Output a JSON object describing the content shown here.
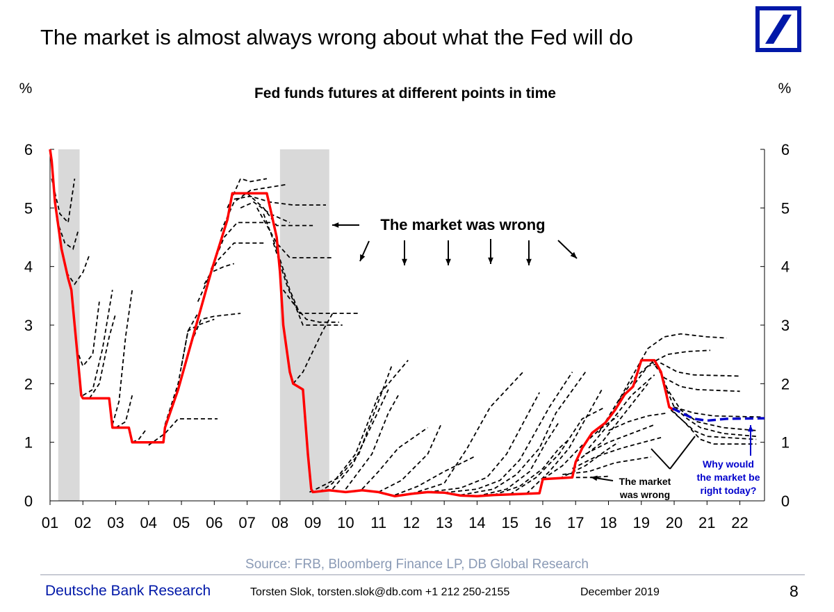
{
  "slide": {
    "title": "The market is almost always wrong about what the Fed will do",
    "footer_brand": "Deutsche Bank Research",
    "footer_contact": "Torsten Slok, torsten.slok@db.com  +1 212 250-2155",
    "footer_date": "December 2019",
    "page_number": "8"
  },
  "chart_data": {
    "type": "line",
    "title": "Fed funds futures at different points in time",
    "ylabel_left": "%",
    "ylabel_right": "%",
    "source": "Source: FRB, Bloomberg Finance LP, DB Global Research",
    "ylim": [
      0,
      6
    ],
    "y_ticks": [
      "0",
      "1",
      "2",
      "3",
      "4",
      "5",
      "6"
    ],
    "x_ticks": [
      "01",
      "02",
      "03",
      "04",
      "05",
      "06",
      "07",
      "08",
      "09",
      "10",
      "11",
      "12",
      "13",
      "14",
      "15",
      "16",
      "17",
      "18",
      "19",
      "20",
      "21",
      "22"
    ],
    "grid": false,
    "colors": {
      "fed_funds": "#ff0000",
      "futures": "#000000",
      "current_futures": "#0000cc",
      "recession": "#d9d9d9"
    },
    "recessions": [
      {
        "start": 2001.25,
        "end": 2001.9
      },
      {
        "start": 2008.0,
        "end": 2009.5
      }
    ],
    "fed_funds_rate": [
      [
        2001.0,
        6.0
      ],
      [
        2001.05,
        5.8
      ],
      [
        2001.15,
        5.1
      ],
      [
        2001.35,
        4.3
      ],
      [
        2001.55,
        3.8
      ],
      [
        2001.65,
        3.6
      ],
      [
        2001.75,
        3.0
      ],
      [
        2001.85,
        2.4
      ],
      [
        2001.95,
        1.8
      ],
      [
        2002.0,
        1.75
      ],
      [
        2002.8,
        1.75
      ],
      [
        2002.9,
        1.25
      ],
      [
        2003.4,
        1.25
      ],
      [
        2003.5,
        1.0
      ],
      [
        2004.45,
        1.0
      ],
      [
        2004.5,
        1.25
      ],
      [
        2004.9,
        1.9
      ],
      [
        2005.4,
        2.9
      ],
      [
        2005.9,
        3.9
      ],
      [
        2006.4,
        4.8
      ],
      [
        2006.55,
        5.25
      ],
      [
        2007.6,
        5.25
      ],
      [
        2007.7,
        5.0
      ],
      [
        2007.9,
        4.5
      ],
      [
        2008.0,
        3.9
      ],
      [
        2008.1,
        3.0
      ],
      [
        2008.3,
        2.2
      ],
      [
        2008.4,
        2.0
      ],
      [
        2008.7,
        1.9
      ],
      [
        2008.85,
        0.8
      ],
      [
        2008.95,
        0.2
      ],
      [
        2009.0,
        0.15
      ],
      [
        2009.5,
        0.18
      ],
      [
        2010.0,
        0.15
      ],
      [
        2010.5,
        0.18
      ],
      [
        2011.0,
        0.15
      ],
      [
        2011.5,
        0.08
      ],
      [
        2012.0,
        0.12
      ],
      [
        2012.5,
        0.15
      ],
      [
        2013.0,
        0.14
      ],
      [
        2013.5,
        0.09
      ],
      [
        2014.0,
        0.08
      ],
      [
        2014.5,
        0.1
      ],
      [
        2015.0,
        0.11
      ],
      [
        2015.9,
        0.13
      ],
      [
        2016.0,
        0.37
      ],
      [
        2016.9,
        0.4
      ],
      [
        2017.0,
        0.66
      ],
      [
        2017.2,
        0.9
      ],
      [
        2017.5,
        1.16
      ],
      [
        2017.9,
        1.33
      ],
      [
        2018.2,
        1.55
      ],
      [
        2018.5,
        1.82
      ],
      [
        2018.75,
        1.95
      ],
      [
        2019.0,
        2.4
      ],
      [
        2019.4,
        2.4
      ],
      [
        2019.6,
        2.2
      ],
      [
        2019.75,
        1.85
      ],
      [
        2019.85,
        1.6
      ],
      [
        2020.0,
        1.55
      ]
    ],
    "futures_paths": [
      [
        [
          2001.05,
          5.5
        ],
        [
          2001.3,
          4.9
        ],
        [
          2001.55,
          4.75
        ],
        [
          2001.75,
          5.5
        ]
      ],
      [
        [
          2001.2,
          4.8
        ],
        [
          2001.45,
          4.4
        ],
        [
          2001.7,
          4.3
        ],
        [
          2001.85,
          4.6
        ]
      ],
      [
        [
          2001.5,
          3.9
        ],
        [
          2001.75,
          3.7
        ],
        [
          2002.0,
          3.9
        ],
        [
          2002.2,
          4.2
        ]
      ],
      [
        [
          2001.8,
          2.6
        ],
        [
          2002.0,
          2.3
        ],
        [
          2002.3,
          2.5
        ],
        [
          2002.5,
          3.4
        ]
      ],
      [
        [
          2002.0,
          1.8
        ],
        [
          2002.3,
          1.9
        ],
        [
          2002.6,
          2.6
        ],
        [
          2002.9,
          3.6
        ]
      ],
      [
        [
          2002.2,
          1.75
        ],
        [
          2002.5,
          2.0
        ],
        [
          2002.8,
          2.8
        ],
        [
          2003.0,
          3.2
        ]
      ],
      [
        [
          2002.9,
          1.3
        ],
        [
          2003.1,
          1.7
        ],
        [
          2003.3,
          2.8
        ],
        [
          2003.5,
          3.6
        ]
      ],
      [
        [
          2003.0,
          1.25
        ],
        [
          2003.3,
          1.35
        ],
        [
          2003.5,
          1.8
        ]
      ],
      [
        [
          2003.5,
          1.0
        ],
        [
          2003.7,
          1.05
        ],
        [
          2003.9,
          1.2
        ]
      ],
      [
        [
          2004.0,
          0.95
        ],
        [
          2004.5,
          1.15
        ],
        [
          2004.9,
          1.4
        ],
        [
          2006.1,
          1.4
        ]
      ],
      [
        [
          2004.5,
          1.3
        ],
        [
          2004.9,
          2.0
        ],
        [
          2005.2,
          2.9
        ],
        [
          2005.5,
          3.2
        ]
      ],
      [
        [
          2005.0,
          2.3
        ],
        [
          2005.2,
          2.9
        ],
        [
          2005.5,
          3.0
        ],
        [
          2006.0,
          3.1
        ]
      ],
      [
        [
          2005.3,
          2.7
        ],
        [
          2005.6,
          3.1
        ],
        [
          2006.0,
          3.15
        ],
        [
          2006.8,
          3.2
        ]
      ],
      [
        [
          2005.5,
          3.4
        ],
        [
          2005.9,
          3.9
        ],
        [
          2006.3,
          4.0
        ],
        [
          2006.6,
          4.05
        ]
      ],
      [
        [
          2005.7,
          3.7
        ],
        [
          2006.1,
          4.1
        ],
        [
          2006.6,
          4.4
        ],
        [
          2007.5,
          4.4
        ]
      ],
      [
        [
          2005.9,
          3.95
        ],
        [
          2006.3,
          4.5
        ],
        [
          2006.7,
          4.75
        ],
        [
          2007.8,
          4.75
        ]
      ],
      [
        [
          2006.2,
          4.6
        ],
        [
          2006.6,
          5.1
        ],
        [
          2007.1,
          5.3
        ],
        [
          2008.2,
          5.4
        ]
      ],
      [
        [
          2006.4,
          5.0
        ],
        [
          2006.8,
          5.5
        ],
        [
          2007.1,
          5.45
        ],
        [
          2007.6,
          5.5
        ]
      ],
      [
        [
          2006.6,
          5.15
        ],
        [
          2007.1,
          5.2
        ],
        [
          2007.7,
          5.1
        ],
        [
          2008.4,
          5.05
        ],
        [
          2009.4,
          5.05
        ]
      ],
      [
        [
          2006.8,
          5.0
        ],
        [
          2007.2,
          5.1
        ],
        [
          2007.7,
          4.9
        ],
        [
          2008.3,
          4.75
        ]
      ],
      [
        [
          2007.0,
          5.25
        ],
        [
          2007.5,
          5.0
        ],
        [
          2007.9,
          4.7
        ],
        [
          2008.3,
          4.7
        ],
        [
          2009.0,
          4.7
        ]
      ],
      [
        [
          2007.3,
          5.0
        ],
        [
          2007.9,
          4.4
        ],
        [
          2008.3,
          4.15
        ],
        [
          2009.6,
          4.15
        ]
      ],
      [
        [
          2007.5,
          4.9
        ],
        [
          2007.9,
          4.3
        ],
        [
          2008.3,
          3.6
        ],
        [
          2008.6,
          3.2
        ],
        [
          2010.4,
          3.2
        ]
      ],
      [
        [
          2007.8,
          4.4
        ],
        [
          2008.2,
          3.7
        ],
        [
          2008.7,
          3.0
        ],
        [
          2009.9,
          3.0
        ]
      ],
      [
        [
          2008.1,
          3.6
        ],
        [
          2008.5,
          3.3
        ],
        [
          2008.8,
          3.1
        ],
        [
          2009.2,
          3.05
        ],
        [
          2009.8,
          3.05
        ]
      ],
      [
        [
          2008.4,
          2.0
        ],
        [
          2008.7,
          2.2
        ],
        [
          2009.3,
          2.9
        ],
        [
          2009.6,
          3.2
        ]
      ],
      [
        [
          2008.9,
          0.15
        ],
        [
          2009.1,
          0.2
        ],
        [
          2009.8,
          0.4
        ],
        [
          2010.4,
          0.8
        ],
        [
          2011.4,
          2.3
        ]
      ],
      [
        [
          2009.2,
          0.15
        ],
        [
          2009.6,
          0.3
        ],
        [
          2010.3,
          0.8
        ],
        [
          2011.0,
          1.8
        ],
        [
          2011.9,
          2.4
        ]
      ],
      [
        [
          2009.6,
          0.2
        ],
        [
          2010.2,
          0.6
        ],
        [
          2010.8,
          1.3
        ],
        [
          2011.3,
          1.9
        ]
      ],
      [
        [
          2010.0,
          0.2
        ],
        [
          2010.8,
          0.8
        ],
        [
          2011.3,
          1.5
        ],
        [
          2011.6,
          1.8
        ]
      ],
      [
        [
          2010.5,
          0.2
        ],
        [
          2011.0,
          0.5
        ],
        [
          2011.6,
          0.9
        ],
        [
          2012.5,
          1.25
        ]
      ],
      [
        [
          2011.0,
          0.15
        ],
        [
          2011.7,
          0.35
        ],
        [
          2012.5,
          0.8
        ],
        [
          2012.9,
          1.3
        ]
      ],
      [
        [
          2011.5,
          0.1
        ],
        [
          2012.2,
          0.25
        ],
        [
          2013.0,
          0.5
        ],
        [
          2013.9,
          0.75
        ]
      ],
      [
        [
          2012.0,
          0.12
        ],
        [
          2013.0,
          0.3
        ],
        [
          2013.7,
          0.9
        ],
        [
          2014.4,
          1.6
        ],
        [
          2015.4,
          2.2
        ]
      ],
      [
        [
          2012.5,
          0.15
        ],
        [
          2013.5,
          0.22
        ],
        [
          2014.3,
          0.4
        ],
        [
          2014.9,
          0.8
        ],
        [
          2015.9,
          1.85
        ]
      ],
      [
        [
          2013.0,
          0.14
        ],
        [
          2014.0,
          0.2
        ],
        [
          2014.7,
          0.35
        ],
        [
          2015.3,
          0.7
        ],
        [
          2016.2,
          1.6
        ],
        [
          2016.9,
          2.2
        ]
      ],
      [
        [
          2013.5,
          0.1
        ],
        [
          2014.5,
          0.2
        ],
        [
          2015.2,
          0.45
        ],
        [
          2015.9,
          0.9
        ],
        [
          2016.4,
          1.5
        ],
        [
          2017.3,
          2.2
        ]
      ],
      [
        [
          2014.0,
          0.08
        ],
        [
          2014.9,
          0.2
        ],
        [
          2015.6,
          0.5
        ],
        [
          2016.1,
          1.0
        ],
        [
          2016.5,
          1.35
        ]
      ],
      [
        [
          2014.5,
          0.1
        ],
        [
          2015.3,
          0.25
        ],
        [
          2016.0,
          0.55
        ],
        [
          2016.5,
          0.9
        ],
        [
          2016.8,
          1.05
        ]
      ],
      [
        [
          2015.0,
          0.11
        ],
        [
          2015.8,
          0.4
        ],
        [
          2016.5,
          0.8
        ],
        [
          2017.2,
          1.4
        ],
        [
          2017.9,
          1.6
        ]
      ],
      [
        [
          2015.5,
          0.12
        ],
        [
          2016.2,
          0.5
        ],
        [
          2016.8,
          0.9
        ],
        [
          2017.4,
          1.5
        ],
        [
          2017.8,
          1.9
        ]
      ],
      [
        [
          2016.0,
          0.37
        ],
        [
          2016.6,
          0.6
        ],
        [
          2017.2,
          0.95
        ],
        [
          2017.8,
          1.25
        ],
        [
          2018.3,
          1.45
        ]
      ],
      [
        [
          2016.5,
          0.38
        ],
        [
          2017.3,
          0.6
        ],
        [
          2017.9,
          0.85
        ],
        [
          2018.3,
          1.0
        ]
      ],
      [
        [
          2017.0,
          0.66
        ],
        [
          2017.8,
          1.0
        ],
        [
          2018.5,
          1.5
        ],
        [
          2019.2,
          2.0
        ]
      ],
      [
        [
          2017.4,
          0.9
        ],
        [
          2018.0,
          1.3
        ],
        [
          2018.7,
          1.8
        ],
        [
          2019.4,
          2.15
        ]
      ],
      [
        [
          2017.7,
          1.16
        ],
        [
          2018.4,
          1.8
        ],
        [
          2018.9,
          2.3
        ],
        [
          2019.2,
          2.6
        ],
        [
          2019.7,
          2.8
        ],
        [
          2020.2,
          2.85
        ],
        [
          2021.0,
          2.8
        ],
        [
          2021.6,
          2.78
        ]
      ],
      [
        [
          2018.3,
          1.7
        ],
        [
          2018.8,
          2.1
        ],
        [
          2019.3,
          2.35
        ],
        [
          2019.8,
          2.5
        ],
        [
          2020.4,
          2.55
        ],
        [
          2021.1,
          2.57
        ]
      ],
      [
        [
          2018.8,
          2.0
        ],
        [
          2019.2,
          2.3
        ],
        [
          2019.6,
          2.35
        ],
        [
          2020.1,
          2.2
        ],
        [
          2020.6,
          2.15
        ],
        [
          2022.0,
          2.13
        ]
      ],
      [
        [
          2019.3,
          2.4
        ],
        [
          2019.7,
          2.1
        ],
        [
          2020.2,
          1.95
        ],
        [
          2020.7,
          1.9
        ],
        [
          2022.0,
          1.87
        ]
      ],
      [
        [
          2019.5,
          2.3
        ],
        [
          2019.8,
          1.9
        ],
        [
          2020.2,
          1.55
        ],
        [
          2020.7,
          1.35
        ],
        [
          2021.5,
          1.25
        ],
        [
          2022.5,
          1.2
        ]
      ],
      [
        [
          2019.7,
          2.0
        ],
        [
          2020.0,
          1.6
        ],
        [
          2020.4,
          1.4
        ],
        [
          2020.8,
          1.25
        ],
        [
          2021.5,
          1.15
        ],
        [
          2022.5,
          1.1
        ]
      ],
      [
        [
          2019.85,
          1.6
        ],
        [
          2020.2,
          1.4
        ],
        [
          2020.6,
          1.2
        ],
        [
          2021.0,
          1.1
        ],
        [
          2022.5,
          1.05
        ]
      ],
      [
        [
          2019.9,
          1.55
        ],
        [
          2020.3,
          1.35
        ],
        [
          2020.8,
          1.05
        ],
        [
          2021.2,
          0.97
        ],
        [
          2022.5,
          0.97
        ]
      ],
      [
        [
          2020.0,
          1.6
        ],
        [
          2020.6,
          1.5
        ],
        [
          2021.2,
          1.45
        ],
        [
          2022.7,
          1.43
        ]
      ],
      [
        [
          2018.0,
          1.2
        ],
        [
          2018.6,
          1.35
        ],
        [
          2019.2,
          1.45
        ],
        [
          2019.8,
          1.5
        ]
      ],
      [
        [
          2017.3,
          0.8
        ],
        [
          2018.0,
          1.0
        ],
        [
          2018.7,
          1.15
        ],
        [
          2019.4,
          1.3
        ]
      ],
      [
        [
          2016.9,
          0.55
        ],
        [
          2017.6,
          0.75
        ],
        [
          2018.4,
          0.9
        ],
        [
          2019.6,
          1.08
        ]
      ],
      [
        [
          2016.6,
          0.45
        ],
        [
          2017.4,
          0.5
        ],
        [
          2018.2,
          0.65
        ],
        [
          2019.3,
          0.75
        ]
      ],
      [
        [
          2016.8,
          0.4
        ],
        [
          2017.5,
          0.4
        ],
        [
          2018.0,
          0.42
        ]
      ]
    ],
    "current_market_path": [
      [
        2019.95,
        1.58
      ],
      [
        2020.3,
        1.48
      ],
      [
        2020.6,
        1.4
      ],
      [
        2021.0,
        1.37
      ],
      [
        2021.6,
        1.4
      ],
      [
        2022.75,
        1.41
      ]
    ],
    "annotations": {
      "top": "The market was wrong",
      "bottom_line1": "The market",
      "bottom_line2": "was wrong",
      "question_line1": "Why would",
      "question_line2": "the market be",
      "question_line3": "right today?"
    }
  }
}
